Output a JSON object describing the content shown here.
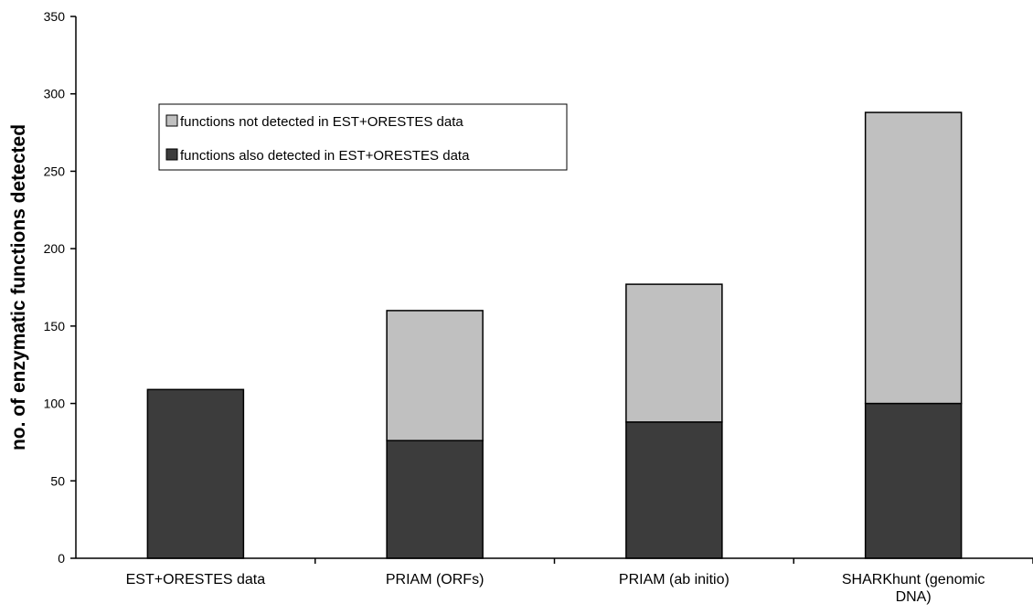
{
  "chart_data": {
    "type": "bar",
    "stacked": true,
    "title": "",
    "xlabel": "",
    "ylabel": "no. of enzymatic functions detected",
    "ylim": [
      0,
      350
    ],
    "yticks": [
      0,
      50,
      100,
      150,
      200,
      250,
      300,
      350
    ],
    "grid": false,
    "legend_position": "top-left",
    "categories": [
      [
        "EST+ORESTES data"
      ],
      [
        "PRIAM (ORFs)"
      ],
      [
        "PRIAM (ab initio)"
      ],
      [
        "SHARKhunt (genomic",
        "DNA)"
      ]
    ],
    "series": [
      {
        "name": "functions also detected in EST+ORESTES data",
        "color": "#3c3c3c",
        "values": [
          109,
          76,
          88,
          100
        ]
      },
      {
        "name": "functions not detected in EST+ORESTES data",
        "color": "#c0c0c0",
        "values": [
          0,
          84,
          89,
          188
        ]
      }
    ],
    "legend_order": [
      1,
      0
    ]
  }
}
